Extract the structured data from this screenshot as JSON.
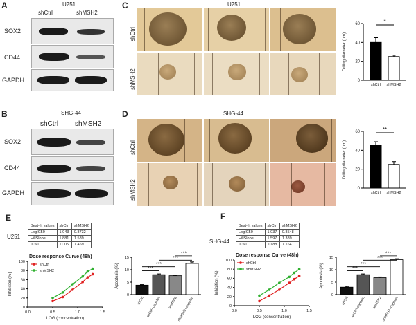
{
  "panels": {
    "A": {
      "letter": "A",
      "cell_line": "U251",
      "cols": [
        "shCtrl",
        "shMSH2"
      ],
      "rows": [
        "SOX2",
        "CD44",
        "GAPDH"
      ]
    },
    "B": {
      "letter": "B",
      "cell_line": "SHG-44",
      "cols": [
        "shCtrl",
        "shMSH2"
      ],
      "rows": [
        "SOX2",
        "CD44",
        "GAPDH"
      ]
    },
    "C": {
      "letter": "C",
      "cell_line": "U251",
      "row_labels": [
        "shCtrl",
        "shMSH2"
      ]
    },
    "D": {
      "letter": "D",
      "cell_line": "SHG-44",
      "row_labels": [
        "shCtrl",
        "shMSH2"
      ]
    },
    "E": {
      "letter": "E",
      "cell_line": "U251",
      "table": {
        "header": [
          "Best-fit values",
          "shCtrl",
          "shMSH2"
        ],
        "rows": [
          [
            "LogIC50",
            "1.043",
            "0.8732"
          ],
          [
            "HillSlope",
            "1.881",
            "1.589"
          ],
          [
            "IC50",
            "11.05",
            "7.469"
          ]
        ]
      },
      "curve_title": "Dose response Curve (48h)"
    },
    "F": {
      "letter": "F",
      "cell_line": "SHG-44",
      "table": {
        "header": [
          "Best-fit values",
          "shCtrl",
          "shMSH2"
        ],
        "rows": [
          [
            "LogIC50",
            "1.037",
            "0.8548"
          ],
          [
            "HillSlope",
            "1.597",
            "1.389"
          ],
          [
            "IC50",
            "10.88",
            "7.164"
          ]
        ]
      },
      "curve_title": "Dose response Curve (48h)"
    }
  },
  "chart_data": [
    {
      "id": "C-bar",
      "type": "bar",
      "categories": [
        "shCtrl",
        "shMSH2"
      ],
      "values": [
        40,
        25
      ],
      "errors": [
        5,
        1.5
      ],
      "ylabel": "Driling diameter (μm)",
      "ylim": [
        0,
        60
      ],
      "yticks": [
        0,
        20,
        40,
        60
      ],
      "significance": "*",
      "colors": [
        "#000000",
        "#ffffff"
      ]
    },
    {
      "id": "D-bar",
      "type": "bar",
      "categories": [
        "shCtrl",
        "shMSH2"
      ],
      "values": [
        45,
        25
      ],
      "errors": [
        4,
        3
      ],
      "ylabel": "Driling diameter (μm)",
      "ylim": [
        0,
        60
      ],
      "yticks": [
        0,
        20,
        40,
        60
      ],
      "significance": "**",
      "colors": [
        "#000000",
        "#ffffff"
      ]
    },
    {
      "id": "E-curve",
      "type": "line",
      "xlabel": "LOG (concentration)",
      "ylabel": "Inhibition (%)",
      "xlim": [
        0,
        1.5
      ],
      "ylim": [
        0,
        100
      ],
      "xticks": [
        0.0,
        0.5,
        1.0,
        1.5
      ],
      "yticks": [
        0,
        20,
        40,
        60,
        80,
        100
      ],
      "series": [
        {
          "name": "shCtrl",
          "color": "#e02020",
          "x": [
            0.5,
            0.7,
            0.9,
            1.1,
            1.2,
            1.3
          ],
          "y": [
            13,
            22,
            38,
            55,
            65,
            72
          ]
        },
        {
          "name": "shMSH2",
          "color": "#30b030",
          "x": [
            0.5,
            0.7,
            0.9,
            1.1,
            1.2,
            1.3
          ],
          "y": [
            20,
            32,
            50,
            67,
            78,
            84
          ]
        }
      ]
    },
    {
      "id": "E-bar",
      "type": "bar",
      "categories": [
        "shCtrl",
        "shCtrl+cispaltin",
        "shMSH2",
        "shMSH2+cispaltin"
      ],
      "values": [
        3.8,
        8.0,
        7.6,
        12.5
      ],
      "errors": [
        0.2,
        0.3,
        0.2,
        0.6
      ],
      "ylabel": "Apoptosis (%)",
      "ylim": [
        0,
        15
      ],
      "yticks": [
        0,
        5,
        10,
        15
      ],
      "significance": [
        "***",
        "***",
        "***",
        "***"
      ]
    },
    {
      "id": "F-curve",
      "type": "line",
      "xlabel": "LOG (concentration)",
      "ylabel": "Inhibition (%)",
      "xlim": [
        0,
        1.5
      ],
      "ylim": [
        0,
        100
      ],
      "xticks": [
        0.0,
        0.5,
        1.0,
        1.5
      ],
      "yticks": [
        0,
        20,
        40,
        60,
        80,
        100
      ],
      "series": [
        {
          "name": "shCtrl",
          "color": "#e02020",
          "x": [
            0.5,
            0.7,
            0.9,
            1.1,
            1.2,
            1.3
          ],
          "y": [
            10,
            22,
            35,
            50,
            58,
            65
          ]
        },
        {
          "name": "shMSH2",
          "color": "#30b030",
          "x": [
            0.5,
            0.7,
            0.9,
            1.1,
            1.2,
            1.3
          ],
          "y": [
            22,
            35,
            50,
            63,
            72,
            80
          ]
        }
      ]
    },
    {
      "id": "F-bar",
      "type": "bar",
      "categories": [
        "shCtrl",
        "shCtrl+cisplatin",
        "shMSH2",
        "shMSH2+cisplatin"
      ],
      "values": [
        3.0,
        8.0,
        6.8,
        14.0
      ],
      "errors": [
        0.3,
        0.3,
        0.3,
        0.4
      ],
      "ylabel": "Apoptosis (%)",
      "ylim": [
        0,
        15
      ],
      "yticks": [
        0,
        5,
        10,
        15
      ],
      "significance": [
        "***",
        "***",
        "***",
        "***"
      ]
    }
  ]
}
